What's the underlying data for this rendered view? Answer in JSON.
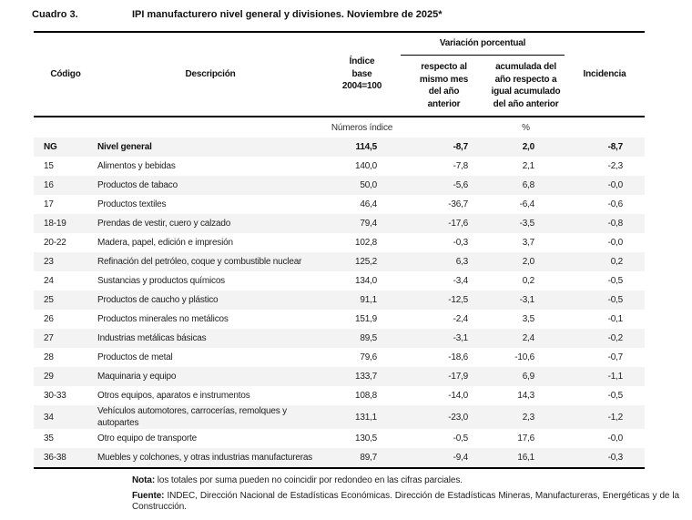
{
  "title": {
    "label": "Cuadro 3.",
    "text": "IPI manufacturero nivel general y divisiones. Noviembre de 2025*"
  },
  "table": {
    "columns": {
      "codigo": "Código",
      "descripcion": "Descripción",
      "indice": "Índice\nbase\n2004=100",
      "variacion_group": "Variación porcentual",
      "var_mes": "respecto al\nmismo mes\ndel año\nanterior",
      "var_acum": "acumulada del\naño respecto a\nigual acumulado\ndel año anterior",
      "incidencia": "Incidencia"
    },
    "units": {
      "indice": "Números índice",
      "porcentaje": "%"
    },
    "rows": [
      {
        "code": "NG",
        "desc": "Nivel general",
        "indice": "114,5",
        "var_mes": "-8,7",
        "var_acum": "2,0",
        "incidencia": "-8,7",
        "bold": true
      },
      {
        "code": "15",
        "desc": "Alimentos y bebidas",
        "indice": "140,0",
        "var_mes": "-7,8",
        "var_acum": "2,1",
        "incidencia": "-2,3"
      },
      {
        "code": "16",
        "desc": "Productos de tabaco",
        "indice": "50,0",
        "var_mes": "-5,6",
        "var_acum": "6,8",
        "incidencia": "-0,0"
      },
      {
        "code": "17",
        "desc": "Productos textiles",
        "indice": "46,4",
        "var_mes": "-36,7",
        "var_acum": "-6,4",
        "incidencia": "-0,6"
      },
      {
        "code": "18-19",
        "desc": "Prendas de vestir, cuero y calzado",
        "indice": "79,4",
        "var_mes": "-17,6",
        "var_acum": "-3,5",
        "incidencia": "-0,8"
      },
      {
        "code": "20-22",
        "desc": "Madera, papel, edición e impresión",
        "indice": "102,8",
        "var_mes": "-0,3",
        "var_acum": "3,7",
        "incidencia": "-0,0"
      },
      {
        "code": "23",
        "desc": "Refinación del petróleo, coque y combustible nuclear",
        "indice": "125,2",
        "var_mes": "6,3",
        "var_acum": "2,0",
        "incidencia": "0,2"
      },
      {
        "code": "24",
        "desc": "Sustancias y productos químicos",
        "indice": "134,0",
        "var_mes": "-3,4",
        "var_acum": "0,2",
        "incidencia": "-0,5"
      },
      {
        "code": "25",
        "desc": "Productos de caucho y plástico",
        "indice": "91,1",
        "var_mes": "-12,5",
        "var_acum": "-3,1",
        "incidencia": "-0,5"
      },
      {
        "code": "26",
        "desc": "Productos minerales no metálicos",
        "indice": "151,9",
        "var_mes": "-2,4",
        "var_acum": "3,5",
        "incidencia": "-0,1"
      },
      {
        "code": "27",
        "desc": "Industrias metálicas básicas",
        "indice": "89,5",
        "var_mes": "-3,1",
        "var_acum": "2,4",
        "incidencia": "-0,2"
      },
      {
        "code": "28",
        "desc": "Productos de metal",
        "indice": "79,6",
        "var_mes": "-18,6",
        "var_acum": "-10,6",
        "incidencia": "-0,7"
      },
      {
        "code": "29",
        "desc": "Maquinaria y equipo",
        "indice": "133,7",
        "var_mes": "-17,9",
        "var_acum": "6,9",
        "incidencia": "-1,1"
      },
      {
        "code": "30-33",
        "desc": "Otros equipos, aparatos e instrumentos",
        "indice": "108,8",
        "var_mes": "-14,0",
        "var_acum": "14,3",
        "incidencia": "-0,5"
      },
      {
        "code": "34",
        "desc": "Vehículos automotores, carrocerías, remolques y autopartes",
        "indice": "131,1",
        "var_mes": "-23,0",
        "var_acum": "2,3",
        "incidencia": "-1,2"
      },
      {
        "code": "35",
        "desc": "Otro equipo de transporte",
        "indice": "130,5",
        "var_mes": "-0,5",
        "var_acum": "17,6",
        "incidencia": "-0,0"
      },
      {
        "code": "36-38",
        "desc": "Muebles y colchones, y otras industrias manufactureras",
        "indice": "89,7",
        "var_mes": "-9,4",
        "var_acum": "16,1",
        "incidencia": "-0,3"
      }
    ]
  },
  "notes": {
    "nota_label": "Nota:",
    "nota_text": " los totales por suma pueden no coincidir por redondeo en las cifras parciales.",
    "fuente_label": "Fuente:",
    "fuente_text": " INDEC, Dirección Nacional de Estadísticas Económicas. Dirección de Estadísticas Mineras, Manufactureras, Energéticas y de la Construcción."
  },
  "colors": {
    "row_shade": "#f3f3f3",
    "border": "#000000",
    "text": "#1f1f1f"
  }
}
